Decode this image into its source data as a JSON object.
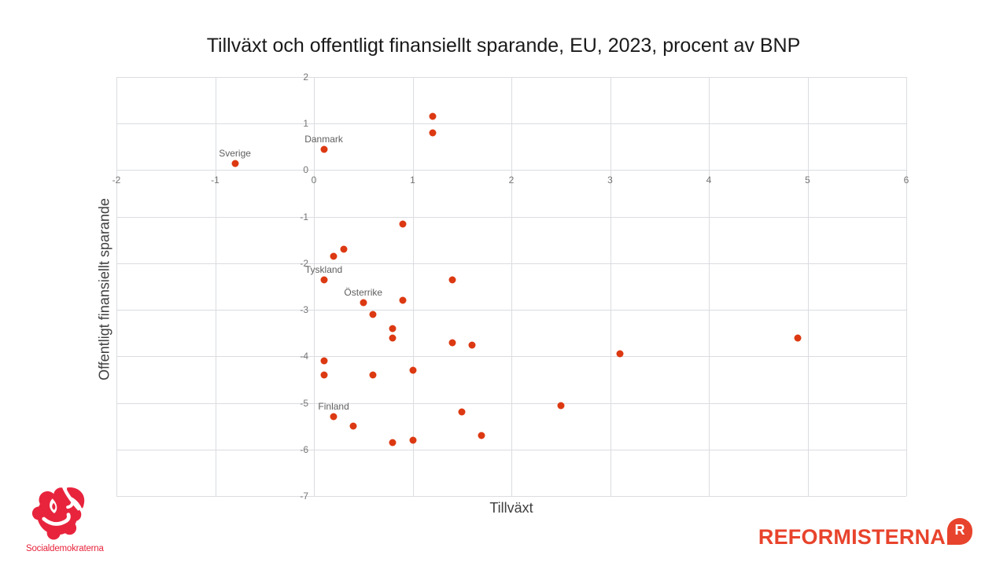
{
  "chart_data": {
    "type": "scatter",
    "title": "Tillväxt och offentligt finansiellt sparande, EU, 2023, procent av BNP",
    "xlabel": "Tillväxt",
    "ylabel": "Offentligt finansiellt sparande",
    "xlim": [
      -2,
      6
    ],
    "ylim": [
      -7,
      2
    ],
    "x_ticks": [
      -2,
      -1,
      0,
      1,
      2,
      3,
      4,
      5,
      6
    ],
    "y_ticks": [
      2,
      1,
      0,
      -1,
      -2,
      -3,
      -4,
      -5,
      -6,
      -7
    ],
    "grid": true,
    "legend": "none",
    "points": [
      {
        "x": -0.8,
        "y": 0.15,
        "label": "Sverige"
      },
      {
        "x": 0.1,
        "y": 0.45,
        "label": "Danmark"
      },
      {
        "x": 1.2,
        "y": 1.15
      },
      {
        "x": 1.2,
        "y": 0.8
      },
      {
        "x": 0.9,
        "y": -1.15
      },
      {
        "x": 0.3,
        "y": -1.7
      },
      {
        "x": 0.2,
        "y": -1.85
      },
      {
        "x": 0.1,
        "y": -2.35,
        "label": "Tyskland"
      },
      {
        "x": 1.4,
        "y": -2.35
      },
      {
        "x": 0.9,
        "y": -2.8
      },
      {
        "x": 0.5,
        "y": -2.85,
        "label": "Österrike"
      },
      {
        "x": 0.6,
        "y": -3.1
      },
      {
        "x": 0.8,
        "y": -3.4
      },
      {
        "x": 0.8,
        "y": -3.6
      },
      {
        "x": 1.4,
        "y": -3.7
      },
      {
        "x": 1.6,
        "y": -3.75
      },
      {
        "x": 4.9,
        "y": -3.6
      },
      {
        "x": 3.1,
        "y": -3.95
      },
      {
        "x": 0.1,
        "y": -4.1
      },
      {
        "x": 1.0,
        "y": -4.3
      },
      {
        "x": 0.6,
        "y": -4.4
      },
      {
        "x": 0.1,
        "y": -4.4
      },
      {
        "x": 2.5,
        "y": -5.05
      },
      {
        "x": 1.5,
        "y": -5.2
      },
      {
        "x": 0.2,
        "y": -5.3,
        "label": "Finland"
      },
      {
        "x": 0.4,
        "y": -5.5
      },
      {
        "x": 1.7,
        "y": -5.7
      },
      {
        "x": 1.0,
        "y": -5.8
      },
      {
        "x": 0.8,
        "y": -5.85
      }
    ]
  },
  "branding": {
    "left_logo": {
      "text": "Socialdemokraterna"
    },
    "right_logo": {
      "text": "REFORMISTERNA",
      "badge_letter": "R"
    }
  },
  "colors": {
    "title": "#1a1a1a",
    "grid": "#dadce0",
    "tick": "#757575",
    "point": "#dc3912",
    "point_label": "#5f5f5f",
    "axis_title": "#404040",
    "s_red": "#e8243d",
    "reform_red": "#e8432c"
  }
}
